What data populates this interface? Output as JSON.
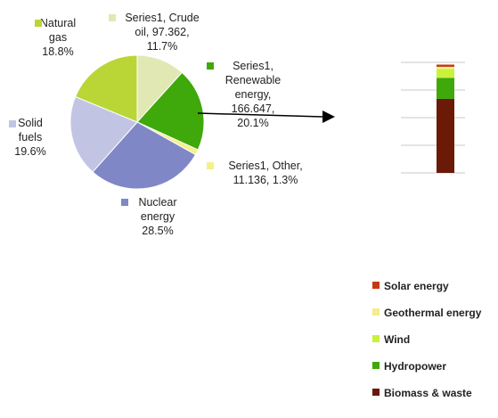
{
  "chart_data": [
    {
      "type": "pie",
      "slices": [
        {
          "name": "Crude oil",
          "value": 97.362,
          "percent": 11.7,
          "color": "#e1e8b4",
          "label_lines": [
            "Series1,  Crude",
            "oil,  97.362,",
            "11.7%"
          ]
        },
        {
          "name": "Renewable energy",
          "value": 166.647,
          "percent": 20.1,
          "color": "#3fa80a",
          "label_lines": [
            "Series1,",
            "Renewable",
            "energy,",
            "166.647,",
            "20.1%"
          ]
        },
        {
          "name": "Other",
          "value": 11.136,
          "percent": 1.3,
          "color": "#f5f08a",
          "label_lines": [
            "Series1,  Other,",
            "11.136,  1.3%"
          ]
        },
        {
          "name": "Nuclear energy",
          "value": null,
          "percent": 28.5,
          "color": "#7f87c6",
          "label_lines": [
            "Nuclear",
            "energy",
            "28.5%"
          ]
        },
        {
          "name": "Solid fuels",
          "value": null,
          "percent": 19.6,
          "color": "#c2c4e3",
          "label_lines": [
            "Solid",
            "fuels",
            "19.6%"
          ]
        },
        {
          "name": "Natural gas",
          "value": null,
          "percent": 18.8,
          "color": "#b9d636",
          "label_lines": [
            "Natural",
            "gas",
            "18.8%"
          ]
        }
      ]
    },
    {
      "type": "bar",
      "stacked": true,
      "categories": [
        ""
      ],
      "ylim": [
        0,
        100
      ],
      "gridlines": 4,
      "series": [
        {
          "name": "Biomass & waste",
          "color": "#6b1a08",
          "values": [
            67
          ]
        },
        {
          "name": "Hydropower",
          "color": "#3fa80a",
          "values": [
            19
          ]
        },
        {
          "name": "Wind",
          "color": "#c9f23a",
          "values": [
            8
          ]
        },
        {
          "name": "Geothermal energy",
          "color": "#f3ee8a",
          "values": [
            2
          ]
        },
        {
          "name": "Solar energy",
          "color": "#c43a12",
          "values": [
            2
          ]
        }
      ],
      "legend_order": [
        "Solar energy",
        "Geothermal energy",
        "Wind",
        "Hydropower",
        "Biomass & waste"
      ]
    }
  ]
}
